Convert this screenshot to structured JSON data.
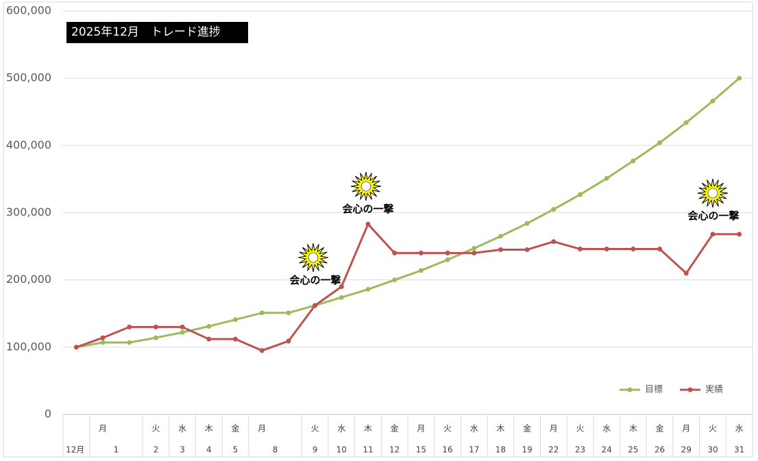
{
  "chart_data": {
    "type": "line",
    "title": "2025年12月　トレード進捗",
    "categories": [
      null,
      "月",
      null,
      "火",
      "水",
      "木",
      "金",
      "月",
      null,
      "火",
      "水",
      "木",
      "金",
      "月",
      "火",
      "水",
      "木",
      "金",
      "月",
      "火",
      "水",
      "木",
      "金",
      "月",
      "火",
      "水"
    ],
    "date_labels": [
      "12月",
      "1",
      null,
      "2",
      "3",
      "4",
      "5",
      "8",
      null,
      "9",
      "10",
      "11",
      "12",
      "15",
      "16",
      "17",
      "18",
      "19",
      "22",
      "23",
      "24",
      "25",
      "26",
      "29",
      "30",
      "31"
    ],
    "series": [
      {
        "name": "目標",
        "color": "#9bbb59",
        "values": [
          100000,
          107000,
          107000,
          114000,
          122000,
          131000,
          141000,
          151000,
          151000,
          162000,
          174000,
          186000,
          200000,
          214000,
          230000,
          247000,
          265000,
          284000,
          305000,
          327000,
          351000,
          377000,
          404000,
          434000,
          466000,
          500000
        ]
      },
      {
        "name": "実績",
        "color": "#c0504d",
        "values": [
          100000,
          114000,
          130000,
          130000,
          130000,
          112000,
          112000,
          95000,
          109000,
          162000,
          190000,
          283000,
          240000,
          240000,
          240000,
          240000,
          245000,
          245000,
          257000,
          246000,
          246000,
          246000,
          246000,
          210000,
          268000,
          268000
        ]
      }
    ],
    "ylim": [
      0,
      600000
    ],
    "yticks": [
      0,
      {
        "value": 100000,
        "label": "100,000"
      },
      {
        "value": 200000,
        "label": "200,000"
      },
      {
        "value": 300000,
        "label": "300,000"
      },
      {
        "value": 400000,
        "label": "400,000"
      },
      {
        "value": 500000,
        "label": "500,000"
      },
      {
        "value": 600000,
        "label": "600,000"
      }
    ],
    "grid": true,
    "legend": "bottom-right",
    "annotations": [
      "会心の一撃",
      "会心の一撃",
      "会心の一撃"
    ]
  }
}
